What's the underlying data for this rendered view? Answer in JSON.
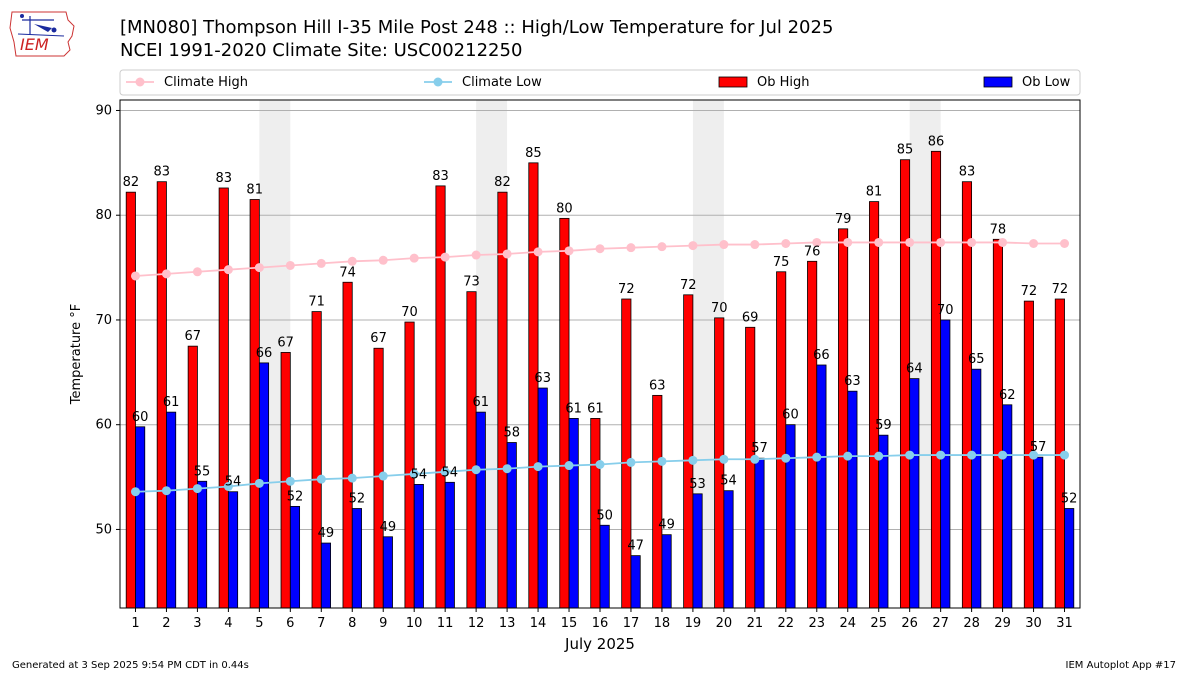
{
  "header": {
    "title_line1": "[MN080] Thompson Hill I-35 Mile Post 248 :: High/Low Temperature for Jul 2025",
    "title_line2": "NCEI 1991-2020 Climate Site: USC00212250"
  },
  "logo": {
    "text": "IEM"
  },
  "footer": {
    "left": "Generated at 3 Sep 2025 9:54 PM CDT in 0.44s",
    "right": "IEM Autoplot App #17"
  },
  "colors": {
    "ob_high": "#ff0000",
    "ob_low": "#0000ff",
    "climate_high": "#ffc0cb",
    "climate_low": "#87ceeb",
    "weekend_shade": "#eeeeee"
  },
  "chart_data": {
    "type": "bar",
    "xlabel": "July 2025",
    "ylabel": "Temperature °F",
    "ylim": [
      42.5,
      91
    ],
    "yticks": [
      50,
      60,
      70,
      80,
      90
    ],
    "categories": [
      "1",
      "2",
      "3",
      "4",
      "5",
      "6",
      "7",
      "8",
      "9",
      "10",
      "11",
      "12",
      "13",
      "14",
      "15",
      "16",
      "17",
      "18",
      "19",
      "20",
      "21",
      "22",
      "23",
      "24",
      "25",
      "26",
      "27",
      "28",
      "29",
      "30",
      "31"
    ],
    "shaded_days": [
      [
        5,
        6
      ],
      [
        12,
        13
      ],
      [
        19,
        20
      ],
      [
        26,
        27
      ]
    ],
    "legend": [
      "Climate High",
      "Climate Low",
      "Ob High",
      "Ob Low"
    ],
    "series": [
      {
        "name": "Ob High",
        "kind": "bar",
        "values": [
          82.2,
          83.2,
          67.5,
          82.6,
          81.5,
          66.9,
          70.8,
          73.6,
          67.3,
          69.8,
          82.8,
          72.7,
          82.2,
          85.0,
          79.7,
          60.6,
          72.0,
          62.8,
          72.4,
          70.2,
          69.3,
          74.6,
          75.6,
          78.7,
          81.3,
          85.3,
          86.1,
          83.2,
          77.7,
          71.8,
          72.0
        ],
        "labels": [
          "82",
          "83",
          "67",
          "83",
          "81",
          "67",
          "71",
          "74",
          "67",
          "70",
          "83",
          "73",
          "82",
          "85",
          "80",
          "61",
          "72",
          "63",
          "72",
          "70",
          "69",
          "75",
          "76",
          "79",
          "81",
          "85",
          "86",
          "83",
          "78",
          "72",
          "72"
        ]
      },
      {
        "name": "Ob Low",
        "kind": "bar",
        "values": [
          59.8,
          61.2,
          54.6,
          53.6,
          65.9,
          52.2,
          48.7,
          52.0,
          49.3,
          54.3,
          54.5,
          61.2,
          58.3,
          63.5,
          60.6,
          50.4,
          47.5,
          49.5,
          53.4,
          53.7,
          56.8,
          60.0,
          65.7,
          63.2,
          59.0,
          64.4,
          70.0,
          65.3,
          61.9,
          56.9,
          52.0
        ],
        "labels": [
          "60",
          "61",
          "55",
          "54",
          "66",
          "52",
          "49",
          "52",
          "49",
          "54",
          "54",
          "61",
          "58",
          "63",
          "61",
          "50",
          "47",
          "49",
          "53",
          "54",
          "57",
          "60",
          "66",
          "63",
          "59",
          "64",
          "70",
          "65",
          "62",
          "57",
          "52"
        ]
      },
      {
        "name": "Climate High",
        "kind": "line",
        "values": [
          74.2,
          74.4,
          74.6,
          74.8,
          75.0,
          75.2,
          75.4,
          75.6,
          75.7,
          75.9,
          76.0,
          76.2,
          76.3,
          76.5,
          76.6,
          76.8,
          76.9,
          77.0,
          77.1,
          77.2,
          77.2,
          77.3,
          77.4,
          77.4,
          77.4,
          77.4,
          77.4,
          77.4,
          77.4,
          77.3,
          77.3
        ]
      },
      {
        "name": "Climate Low",
        "kind": "line",
        "values": [
          53.6,
          53.7,
          53.9,
          54.1,
          54.4,
          54.6,
          54.8,
          54.9,
          55.1,
          55.3,
          55.5,
          55.7,
          55.8,
          56.0,
          56.1,
          56.2,
          56.4,
          56.5,
          56.6,
          56.7,
          56.7,
          56.8,
          56.9,
          57.0,
          57.0,
          57.1,
          57.1,
          57.1,
          57.1,
          57.1,
          57.1
        ]
      }
    ]
  }
}
